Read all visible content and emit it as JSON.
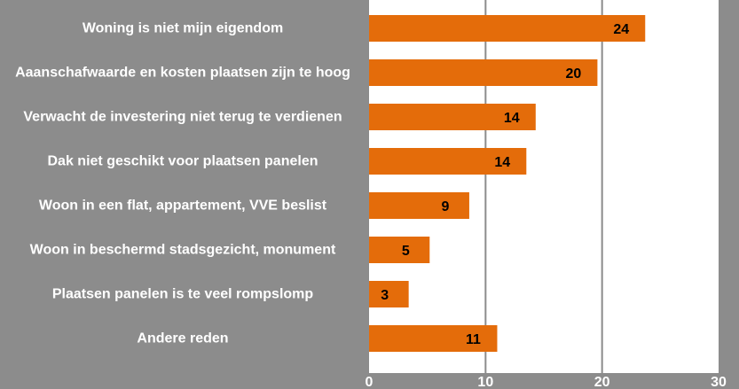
{
  "chart_data": {
    "type": "hbar",
    "categories": [
      "Woning is niet mijn eigendom",
      "Aaanschafwaarde en kosten plaatsen zijn te hoog",
      "Verwacht de investering niet terug te verdienen",
      "Dak niet geschikt voor plaatsen panelen",
      "Woon in een flat, appartement, VVE beslist",
      "Woon in beschermd stadsgezicht, monument",
      "Plaatsen panelen is te veel rompslomp",
      "Andere reden"
    ],
    "values": [
      23.7,
      19.6,
      14.3,
      13.5,
      8.6,
      5.2,
      3.4,
      11.0
    ],
    "value_labels": [
      "24",
      "20",
      "14",
      "14",
      "9",
      "5",
      "3",
      "11"
    ],
    "color": "#e46c0a",
    "xlim": [
      0,
      30
    ],
    "xticks": [
      0,
      10,
      20,
      30
    ],
    "grid": true
  }
}
